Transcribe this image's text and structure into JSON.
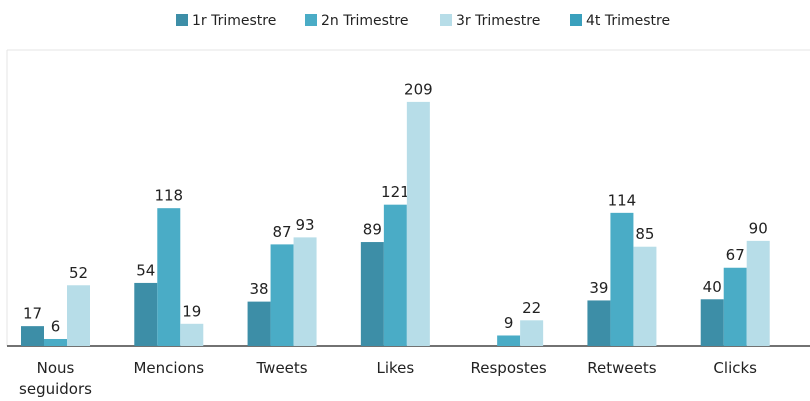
{
  "chart_data": {
    "type": "bar",
    "categories": [
      "Nous seguidors",
      "Mencions",
      "Tweets",
      "Likes",
      "Respostes",
      "Retweets",
      "Clicks"
    ],
    "series": [
      {
        "name": "1r Trimestre",
        "color": "#3d8ea7",
        "values": [
          17,
          54,
          38,
          89,
          null,
          39,
          40
        ]
      },
      {
        "name": "2n Trimestre",
        "color": "#4aacc6",
        "values": [
          6,
          118,
          87,
          121,
          9,
          114,
          67
        ]
      },
      {
        "name": "3r Trimestre",
        "color": "#b7dde8",
        "values": [
          52,
          19,
          93,
          209,
          22,
          85,
          90
        ]
      },
      {
        "name": "4t Trimestre",
        "color": "#3aa0bd",
        "values": [
          null,
          null,
          null,
          null,
          null,
          null,
          null
        ]
      }
    ],
    "ylim": [
      0,
      250
    ],
    "legend": "top"
  }
}
